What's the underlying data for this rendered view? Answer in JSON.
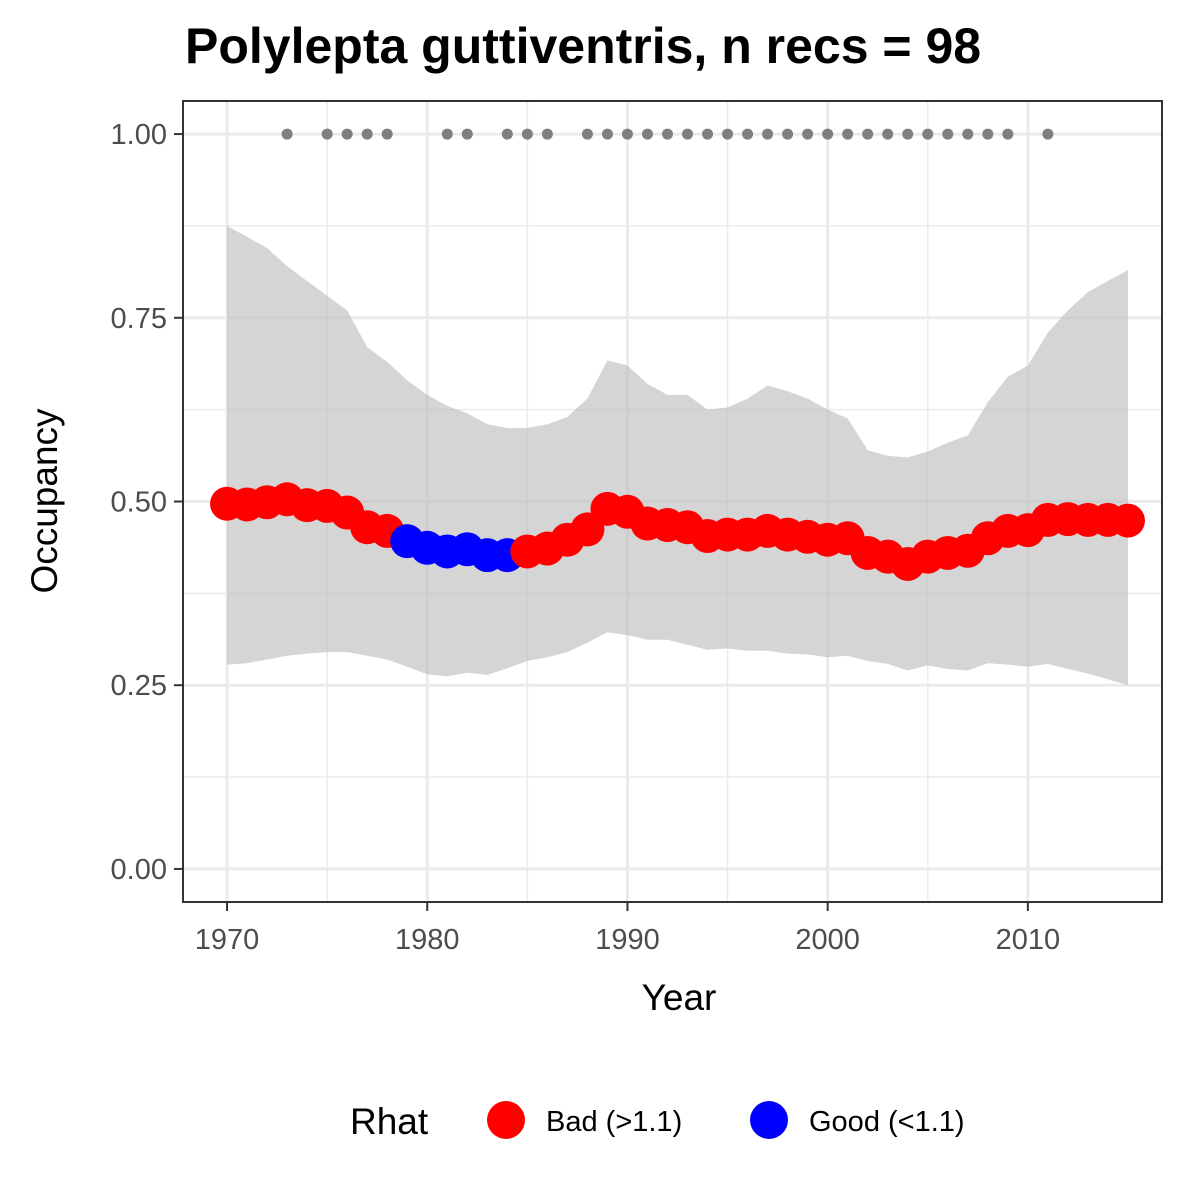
{
  "chart_data": {
    "type": "line",
    "title": "Polylepta guttiventris, n recs = 98",
    "xlabel": "Year",
    "ylabel": "Occupancy",
    "xlim": [
      1967.8,
      2016.7
    ],
    "ylim": [
      -0.045,
      1.045
    ],
    "x_ticks": [
      1970,
      1980,
      1990,
      2000,
      2010
    ],
    "x_tick_labels": [
      "1970",
      "1980",
      "1990",
      "2000",
      "2010"
    ],
    "y_ticks": [
      0,
      0.25,
      0.5,
      0.75,
      1
    ],
    "y_tick_labels": [
      "0.00",
      "0.25",
      "0.50",
      "0.75",
      "1.00"
    ],
    "grid": true,
    "years": [
      1970,
      1971,
      1972,
      1973,
      1974,
      1975,
      1976,
      1977,
      1978,
      1979,
      1980,
      1981,
      1982,
      1983,
      1984,
      1985,
      1986,
      1987,
      1988,
      1989,
      1990,
      1991,
      1992,
      1993,
      1994,
      1995,
      1996,
      1997,
      1998,
      1999,
      2000,
      2001,
      2002,
      2003,
      2004,
      2005,
      2006,
      2007,
      2008,
      2009,
      2010,
      2011,
      2012,
      2013,
      2014,
      2015
    ],
    "occupancy": [
      0.497,
      0.496,
      0.499,
      0.503,
      0.495,
      0.494,
      0.485,
      0.465,
      0.46,
      0.446,
      0.437,
      0.432,
      0.435,
      0.427,
      0.427,
      0.432,
      0.436,
      0.448,
      0.462,
      0.49,
      0.486,
      0.47,
      0.468,
      0.465,
      0.453,
      0.455,
      0.455,
      0.46,
      0.455,
      0.452,
      0.448,
      0.45,
      0.43,
      0.425,
      0.415,
      0.425,
      0.43,
      0.433,
      0.45,
      0.46,
      0.461,
      0.475,
      0.476,
      0.475,
      0.475,
      0.474
    ],
    "rhat_status": [
      "Bad (>1.1)",
      "Bad (>1.1)",
      "Bad (>1.1)",
      "Bad (>1.1)",
      "Bad (>1.1)",
      "Bad (>1.1)",
      "Bad (>1.1)",
      "Bad (>1.1)",
      "Bad (>1.1)",
      "Good (<1.1)",
      "Good (<1.1)",
      "Good (<1.1)",
      "Good (<1.1)",
      "Good (<1.1)",
      "Good (<1.1)",
      "Bad (>1.1)",
      "Bad (>1.1)",
      "Bad (>1.1)",
      "Bad (>1.1)",
      "Bad (>1.1)",
      "Bad (>1.1)",
      "Bad (>1.1)",
      "Bad (>1.1)",
      "Bad (>1.1)",
      "Bad (>1.1)",
      "Bad (>1.1)",
      "Bad (>1.1)",
      "Bad (>1.1)",
      "Bad (>1.1)",
      "Bad (>1.1)",
      "Bad (>1.1)",
      "Bad (>1.1)",
      "Bad (>1.1)",
      "Bad (>1.1)",
      "Bad (>1.1)",
      "Bad (>1.1)",
      "Bad (>1.1)",
      "Bad (>1.1)",
      "Bad (>1.1)",
      "Bad (>1.1)",
      "Bad (>1.1)",
      "Bad (>1.1)",
      "Bad (>1.1)",
      "Bad (>1.1)",
      "Bad (>1.1)",
      "Bad (>1.1)"
    ],
    "lower_ci": [
      0.278,
      0.28,
      0.285,
      0.29,
      0.293,
      0.295,
      0.295,
      0.29,
      0.285,
      0.275,
      0.265,
      0.262,
      0.267,
      0.264,
      0.273,
      0.283,
      0.288,
      0.295,
      0.308,
      0.322,
      0.318,
      0.312,
      0.312,
      0.305,
      0.298,
      0.3,
      0.297,
      0.297,
      0.293,
      0.292,
      0.288,
      0.29,
      0.283,
      0.279,
      0.27,
      0.277,
      0.272,
      0.27,
      0.28,
      0.278,
      0.275,
      0.279,
      0.272,
      0.266,
      0.258,
      0.25
    ],
    "upper_ci": [
      0.875,
      0.86,
      0.845,
      0.82,
      0.8,
      0.78,
      0.76,
      0.71,
      0.69,
      0.665,
      0.645,
      0.63,
      0.62,
      0.605,
      0.6,
      0.6,
      0.605,
      0.615,
      0.64,
      0.692,
      0.685,
      0.66,
      0.645,
      0.645,
      0.625,
      0.628,
      0.64,
      0.658,
      0.65,
      0.64,
      0.625,
      0.613,
      0.57,
      0.562,
      0.56,
      0.568,
      0.58,
      0.59,
      0.635,
      0.67,
      0.685,
      0.73,
      0.76,
      0.785,
      0.8,
      0.815
    ],
    "record_years": [
      1973,
      1975,
      1976,
      1977,
      1978,
      1981,
      1982,
      1984,
      1985,
      1986,
      1988,
      1989,
      1990,
      1991,
      1992,
      1993,
      1994,
      1995,
      1996,
      1997,
      1998,
      1999,
      2000,
      2001,
      2002,
      2003,
      2004,
      2005,
      2006,
      2007,
      2008,
      2009,
      2011
    ],
    "record_value": 1.0,
    "legend": {
      "title": "Rhat",
      "position": "bottom",
      "entries": [
        {
          "label": "Bad (>1.1)",
          "color": "#ff0000"
        },
        {
          "label": "Good (<1.1)",
          "color": "#0000ff"
        }
      ]
    },
    "colors": {
      "ribbon": "#bebebe",
      "record_points": "#7f7f7f",
      "grid": "#ebebeb",
      "panel_border": "#333333"
    }
  }
}
